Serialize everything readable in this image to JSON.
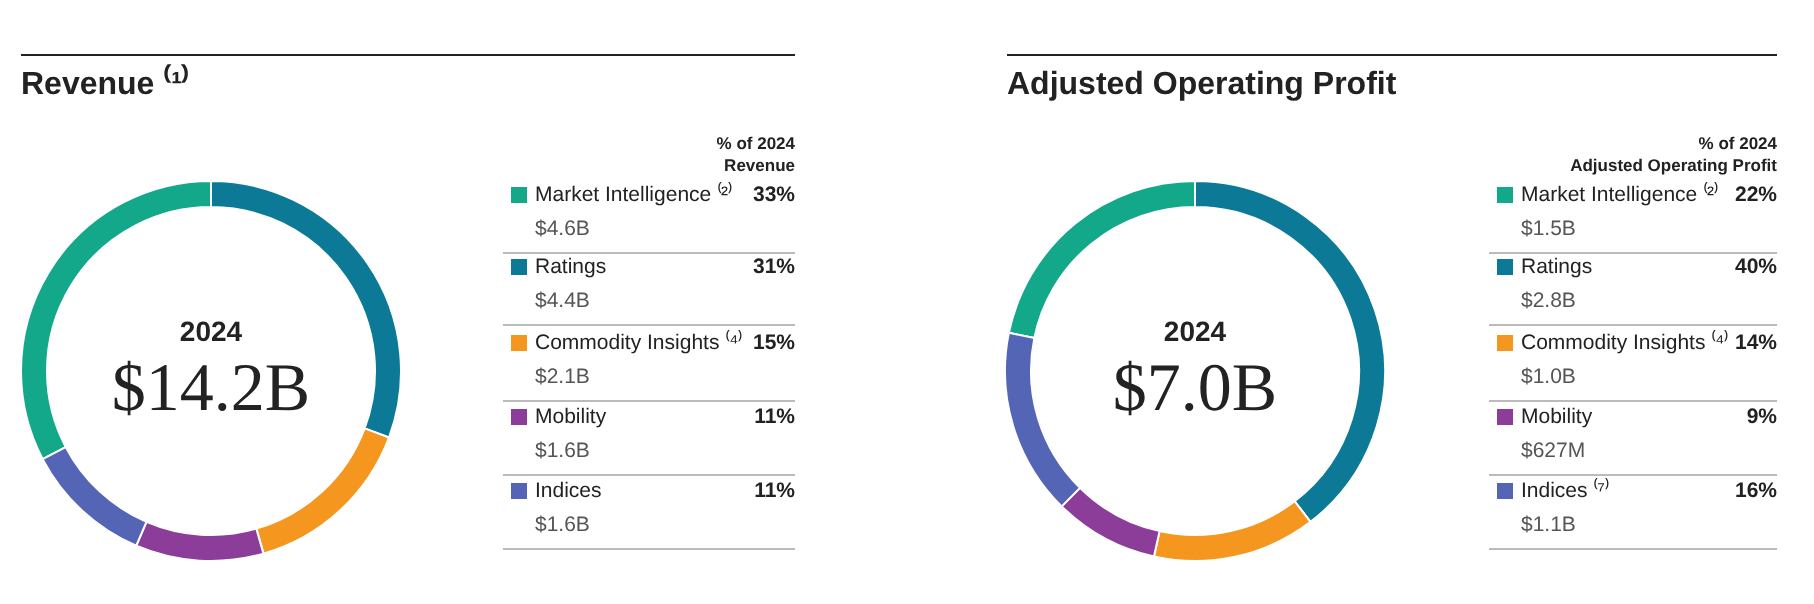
{
  "chart_data": [
    {
      "type": "donut",
      "legend": "right",
      "title": "Revenue ⁽¹⁾",
      "categories": [
        "Market Intelligence ⁽²⁾",
        "Ratings",
        "Commodity Insights ⁽⁴⁾",
        "Mobility",
        "Indices"
      ],
      "values": [
        33,
        31,
        15,
        11,
        11
      ],
      "colors": [
        "#14a88a",
        "#0c7a96",
        "#f5961f",
        "#8c3d9a",
        "#5565b5"
      ],
      "value_labels": [
        "33%",
        "31%",
        "15%",
        "11%",
        "11%"
      ],
      "annotations": [
        "% of 2024\nRevenue",
        "$4.6B",
        "$4.4B",
        "$2.1B",
        "$1.6B",
        "$1.6B",
        "2024",
        "$14.2B"
      ]
    },
    {
      "type": "donut",
      "legend": "right",
      "title": "Adjusted Operating Profit",
      "categories": [
        "Market Intelligence ⁽²⁾",
        "Ratings",
        "Commodity Insights ⁽⁴⁾",
        "Mobility",
        "Indices ⁽⁷⁾"
      ],
      "values": [
        22,
        40,
        14,
        9,
        16
      ],
      "colors": [
        "#14a88a",
        "#0c7a96",
        "#f5961f",
        "#8c3d9a",
        "#5565b5"
      ],
      "value_labels": [
        "22%",
        "40%",
        "14%",
        "9%",
        "16%"
      ],
      "annotations": [
        "% of 2024\nAdjusted Operating Profit",
        "$1.5B",
        "$2.8B",
        "$1.0B",
        "$627M",
        "$1.1B",
        "2024",
        "$7.0B"
      ]
    }
  ]
}
